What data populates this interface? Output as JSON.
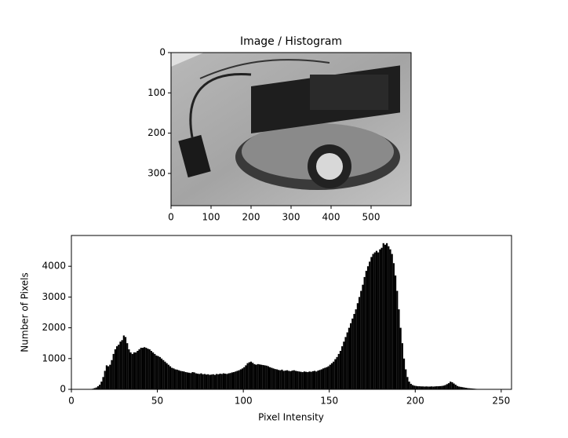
{
  "chart_data": [
    {
      "type": "image",
      "title": "Image / Histogram",
      "xlim": [
        0,
        600
      ],
      "xticks": [
        0,
        100,
        200,
        300,
        400,
        500
      ],
      "ylim": [
        380,
        0
      ],
      "yticks": [
        0,
        100,
        200,
        300
      ]
    },
    {
      "type": "histogram",
      "x_label": "Pixel Intensity",
      "y_label": "Number of Pixels",
      "color": "#000000",
      "bins": [
        0,
        1,
        2,
        3,
        4,
        5,
        6,
        7,
        8,
        9,
        10,
        11,
        12,
        13,
        14,
        15,
        16,
        17,
        18,
        19,
        20,
        21,
        22,
        23,
        24,
        25,
        26,
        27,
        28,
        29,
        30,
        31,
        32,
        33,
        34,
        35,
        36,
        37,
        38,
        39,
        40,
        41,
        42,
        43,
        44,
        45,
        46,
        47,
        48,
        49,
        50,
        51,
        52,
        53,
        54,
        55,
        56,
        57,
        58,
        59,
        60,
        61,
        62,
        63,
        64,
        65,
        66,
        67,
        68,
        69,
        70,
        71,
        72,
        73,
        74,
        75,
        76,
        77,
        78,
        79,
        80,
        81,
        82,
        83,
        84,
        85,
        86,
        87,
        88,
        89,
        90,
        91,
        92,
        93,
        94,
        95,
        96,
        97,
        98,
        99,
        100,
        101,
        102,
        103,
        104,
        105,
        106,
        107,
        108,
        109,
        110,
        111,
        112,
        113,
        114,
        115,
        116,
        117,
        118,
        119,
        120,
        121,
        122,
        123,
        124,
        125,
        126,
        127,
        128,
        129,
        130,
        131,
        132,
        133,
        134,
        135,
        136,
        137,
        138,
        139,
        140,
        141,
        142,
        143,
        144,
        145,
        146,
        147,
        148,
        149,
        150,
        151,
        152,
        153,
        154,
        155,
        156,
        157,
        158,
        159,
        160,
        161,
        162,
        163,
        164,
        165,
        166,
        167,
        168,
        169,
        170,
        171,
        172,
        173,
        174,
        175,
        176,
        177,
        178,
        179,
        180,
        181,
        182,
        183,
        184,
        185,
        186,
        187,
        188,
        189,
        190,
        191,
        192,
        193,
        194,
        195,
        196,
        197,
        198,
        199,
        200,
        201,
        202,
        203,
        204,
        205,
        206,
        207,
        208,
        209,
        210,
        211,
        212,
        213,
        214,
        215,
        216,
        217,
        218,
        219,
        220,
        221,
        222,
        223,
        224,
        225,
        226,
        227,
        228,
        229,
        230,
        231,
        232,
        233,
        234,
        235,
        236,
        237,
        238,
        239,
        240,
        241,
        242,
        243,
        244,
        245,
        246,
        247,
        248,
        249,
        250,
        251,
        252,
        253,
        254,
        255,
        256
      ],
      "counts": [
        0,
        0,
        0,
        0,
        0,
        0,
        0,
        0,
        0,
        0,
        0,
        10,
        20,
        40,
        60,
        100,
        150,
        250,
        400,
        600,
        780,
        750,
        800,
        950,
        1150,
        1300,
        1400,
        1450,
        1550,
        1600,
        1750,
        1700,
        1500,
        1300,
        1200,
        1150,
        1200,
        1200,
        1250,
        1300,
        1350,
        1350,
        1370,
        1350,
        1320,
        1300,
        1250,
        1200,
        1150,
        1100,
        1080,
        1050,
        1000,
        950,
        900,
        850,
        800,
        750,
        700,
        680,
        650,
        640,
        620,
        600,
        590,
        580,
        560,
        550,
        540,
        530,
        560,
        550,
        520,
        510,
        500,
        520,
        490,
        500,
        480,
        490,
        470,
        480,
        490,
        470,
        500,
        490,
        510,
        500,
        520,
        510,
        500,
        520,
        530,
        550,
        560,
        580,
        600,
        620,
        650,
        680,
        720,
        780,
        850,
        880,
        900,
        860,
        820,
        800,
        820,
        810,
        800,
        790,
        780,
        770,
        750,
        720,
        700,
        680,
        660,
        650,
        630,
        620,
        640,
        600,
        610,
        620,
        600,
        590,
        610,
        620,
        600,
        590,
        580,
        570,
        560,
        580,
        570,
        560,
        580,
        570,
        590,
        600,
        580,
        610,
        630,
        650,
        680,
        700,
        720,
        750,
        800,
        850,
        900,
        980,
        1050,
        1150,
        1250,
        1400,
        1550,
        1700,
        1850,
        2000,
        2150,
        2300,
        2450,
        2600,
        2800,
        3000,
        3200,
        3400,
        3650,
        3850,
        4000,
        4150,
        4300,
        4400,
        4450,
        4500,
        4450,
        4550,
        4600,
        4750,
        4700,
        4750,
        4650,
        4550,
        4400,
        4100,
        3700,
        3200,
        2600,
        2000,
        1500,
        1000,
        650,
        400,
        250,
        180,
        140,
        120,
        110,
        100,
        100,
        95,
        95,
        90,
        95,
        90,
        90,
        95,
        90,
        95,
        100,
        100,
        105,
        110,
        120,
        140,
        170,
        200,
        250,
        230,
        190,
        150,
        110,
        90,
        80,
        70,
        60,
        50,
        40,
        35,
        30,
        25,
        20,
        15,
        12,
        10,
        8,
        6,
        5,
        4,
        3,
        2,
        1,
        0,
        0,
        0,
        0,
        0,
        0,
        0,
        0,
        0,
        0,
        0
      ],
      "xlim": [
        0,
        256
      ],
      "xticks": [
        0,
        50,
        100,
        150,
        200,
        250
      ],
      "ylim": [
        0,
        5000
      ],
      "yticks": [
        0,
        1000,
        2000,
        3000,
        4000
      ]
    }
  ]
}
